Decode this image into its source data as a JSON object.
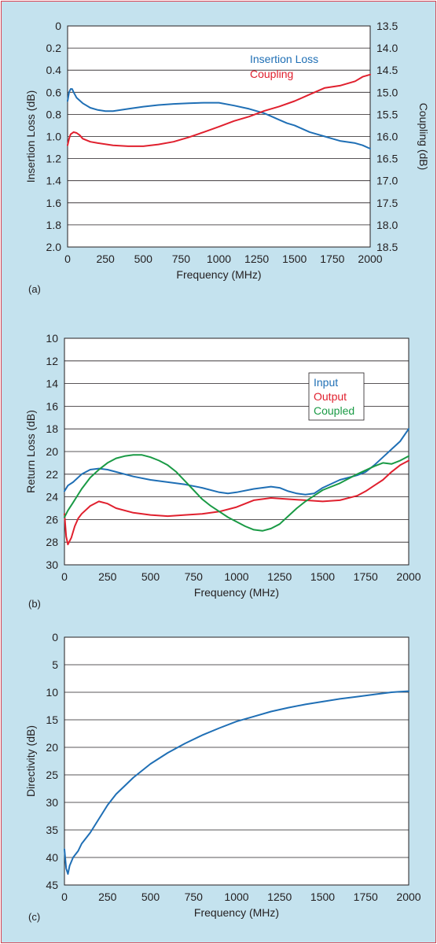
{
  "chart_data": [
    {
      "panel": "(a)",
      "type": "line",
      "xlabel": "Frequency (MHz)",
      "ylabel": "Insertion Loss (dB)",
      "y2label": "Coupling (dB)",
      "xlim": [
        0,
        2000
      ],
      "ylim": [
        0,
        2.0
      ],
      "y2lim": [
        13.5,
        18.5
      ],
      "y_inverted": true,
      "x_ticks": [
        "0",
        "250",
        "500",
        "750",
        "1000",
        "1250",
        "1500",
        "1750",
        "2000"
      ],
      "y_ticks": [
        "0",
        "0.2",
        "0.4",
        "0.6",
        "0.8",
        "1.0",
        "1.2",
        "1.4",
        "1.6",
        "1.8",
        "2.0"
      ],
      "y2_ticks": [
        "13.5",
        "14.0",
        "14.5",
        "15.0",
        "15.5",
        "16.0",
        "16.5",
        "17.0",
        "17.5",
        "18.0",
        "18.5"
      ],
      "grid": "horizontal",
      "legend_position": "top-right",
      "series": [
        {
          "name": "Insertion Loss",
          "color": "#1f6fb5",
          "axis": "left",
          "x": [
            0,
            10,
            20,
            30,
            40,
            60,
            100,
            150,
            200,
            250,
            300,
            400,
            500,
            600,
            700,
            800,
            900,
            1000,
            1100,
            1200,
            1250,
            1300,
            1350,
            1400,
            1450,
            1500,
            1550,
            1600,
            1650,
            1700,
            1750,
            1800,
            1850,
            1900,
            1950,
            2000
          ],
          "y": [
            0.68,
            0.6,
            0.57,
            0.57,
            0.6,
            0.65,
            0.7,
            0.74,
            0.76,
            0.77,
            0.77,
            0.75,
            0.73,
            0.715,
            0.705,
            0.7,
            0.695,
            0.695,
            0.72,
            0.75,
            0.77,
            0.79,
            0.82,
            0.85,
            0.88,
            0.9,
            0.93,
            0.96,
            0.98,
            1.0,
            1.02,
            1.04,
            1.05,
            1.06,
            1.08,
            1.11
          ]
        },
        {
          "name": "Coupling",
          "color": "#e0202e",
          "axis": "right",
          "x": [
            0,
            10,
            20,
            40,
            60,
            80,
            100,
            150,
            200,
            300,
            400,
            500,
            600,
            700,
            800,
            900,
            1000,
            1100,
            1200,
            1300,
            1400,
            1500,
            1600,
            1700,
            1800,
            1900,
            1950,
            2000
          ],
          "y": [
            16.2,
            16.05,
            15.95,
            15.9,
            15.92,
            15.97,
            16.05,
            16.12,
            16.15,
            16.2,
            16.22,
            16.22,
            16.18,
            16.12,
            16.02,
            15.9,
            15.78,
            15.65,
            15.55,
            15.42,
            15.32,
            15.2,
            15.05,
            14.9,
            14.85,
            14.75,
            14.65,
            14.6
          ]
        }
      ]
    },
    {
      "panel": "(b)",
      "type": "line",
      "xlabel": "Frequency (MHz)",
      "ylabel": "Return Loss (dB)",
      "xlim": [
        0,
        2000
      ],
      "ylim": [
        10,
        30
      ],
      "y_inverted": true,
      "x_ticks": [
        "0",
        "250",
        "500",
        "750",
        "1000",
        "1250",
        "1500",
        "1750",
        "2000"
      ],
      "y_ticks": [
        "10",
        "12",
        "14",
        "16",
        "18",
        "20",
        "22",
        "24",
        "26",
        "28",
        "30"
      ],
      "grid": "horizontal",
      "legend_position": "top-right",
      "series": [
        {
          "name": "Input",
          "color": "#1f6fb5",
          "x": [
            0,
            20,
            50,
            100,
            150,
            200,
            250,
            300,
            400,
            500,
            600,
            700,
            800,
            900,
            950,
            1000,
            1100,
            1200,
            1250,
            1300,
            1350,
            1400,
            1450,
            1500,
            1600,
            1700,
            1750,
            1800,
            1850,
            1900,
            1950,
            2000
          ],
          "y": [
            23.5,
            23.0,
            22.7,
            22.0,
            21.6,
            21.5,
            21.6,
            21.8,
            22.2,
            22.5,
            22.7,
            22.9,
            23.2,
            23.6,
            23.7,
            23.6,
            23.3,
            23.1,
            23.2,
            23.5,
            23.7,
            23.8,
            23.7,
            23.2,
            22.5,
            22.1,
            21.8,
            21.2,
            20.5,
            19.8,
            19.1,
            18.0
          ]
        },
        {
          "name": "Output",
          "color": "#e0202e",
          "x": [
            0,
            10,
            20,
            40,
            60,
            80,
            100,
            150,
            200,
            250,
            300,
            400,
            500,
            600,
            700,
            800,
            900,
            1000,
            1100,
            1200,
            1300,
            1400,
            1500,
            1600,
            1700,
            1750,
            1800,
            1850,
            1900,
            1950,
            2000
          ],
          "y": [
            25.5,
            27.5,
            28.2,
            27.6,
            26.6,
            25.9,
            25.5,
            24.8,
            24.4,
            24.6,
            25.0,
            25.4,
            25.6,
            25.7,
            25.6,
            25.5,
            25.3,
            24.9,
            24.3,
            24.1,
            24.2,
            24.3,
            24.4,
            24.3,
            23.9,
            23.5,
            23.0,
            22.5,
            21.8,
            21.2,
            20.8
          ]
        },
        {
          "name": "Coupled",
          "color": "#1a9a45",
          "x": [
            0,
            20,
            50,
            100,
            150,
            200,
            250,
            300,
            350,
            400,
            450,
            500,
            550,
            600,
            650,
            700,
            750,
            800,
            850,
            900,
            950,
            1000,
            1050,
            1100,
            1150,
            1200,
            1250,
            1300,
            1350,
            1400,
            1450,
            1500,
            1600,
            1700,
            1800,
            1850,
            1900,
            1950,
            2000
          ],
          "y": [
            25.8,
            25.2,
            24.5,
            23.3,
            22.3,
            21.6,
            21.0,
            20.6,
            20.4,
            20.3,
            20.3,
            20.5,
            20.8,
            21.2,
            21.8,
            22.6,
            23.4,
            24.2,
            24.8,
            25.3,
            25.8,
            26.2,
            26.6,
            26.9,
            27.0,
            26.8,
            26.4,
            25.7,
            25.0,
            24.4,
            23.9,
            23.4,
            22.8,
            22.0,
            21.3,
            21.0,
            21.1,
            20.8,
            20.4
          ]
        }
      ]
    },
    {
      "panel": "(c)",
      "type": "line",
      "xlabel": "Frequency (MHz)",
      "ylabel": "Directivity (dB)",
      "xlim": [
        0,
        2000
      ],
      "ylim": [
        0,
        45
      ],
      "y_inverted": true,
      "x_ticks": [
        "0",
        "250",
        "500",
        "750",
        "1000",
        "1250",
        "1500",
        "1750",
        "2000"
      ],
      "y_ticks": [
        "0",
        "5",
        "10",
        "15",
        "20",
        "25",
        "30",
        "35",
        "40",
        "45"
      ],
      "grid": "horizontal",
      "series": [
        {
          "name": "",
          "color": "#1f6fb5",
          "x": [
            0,
            10,
            20,
            30,
            50,
            80,
            100,
            150,
            200,
            250,
            300,
            400,
            500,
            600,
            700,
            800,
            900,
            1000,
            1100,
            1200,
            1300,
            1400,
            1500,
            1600,
            1700,
            1800,
            1900,
            1950,
            2000
          ],
          "y": [
            38.5,
            42.0,
            43.0,
            41.5,
            40.0,
            38.8,
            37.5,
            35.5,
            33.0,
            30.5,
            28.5,
            25.5,
            23.0,
            21.0,
            19.3,
            17.8,
            16.5,
            15.3,
            14.4,
            13.5,
            12.8,
            12.2,
            11.7,
            11.2,
            10.8,
            10.4,
            10.0,
            9.9,
            9.8
          ]
        }
      ]
    }
  ]
}
